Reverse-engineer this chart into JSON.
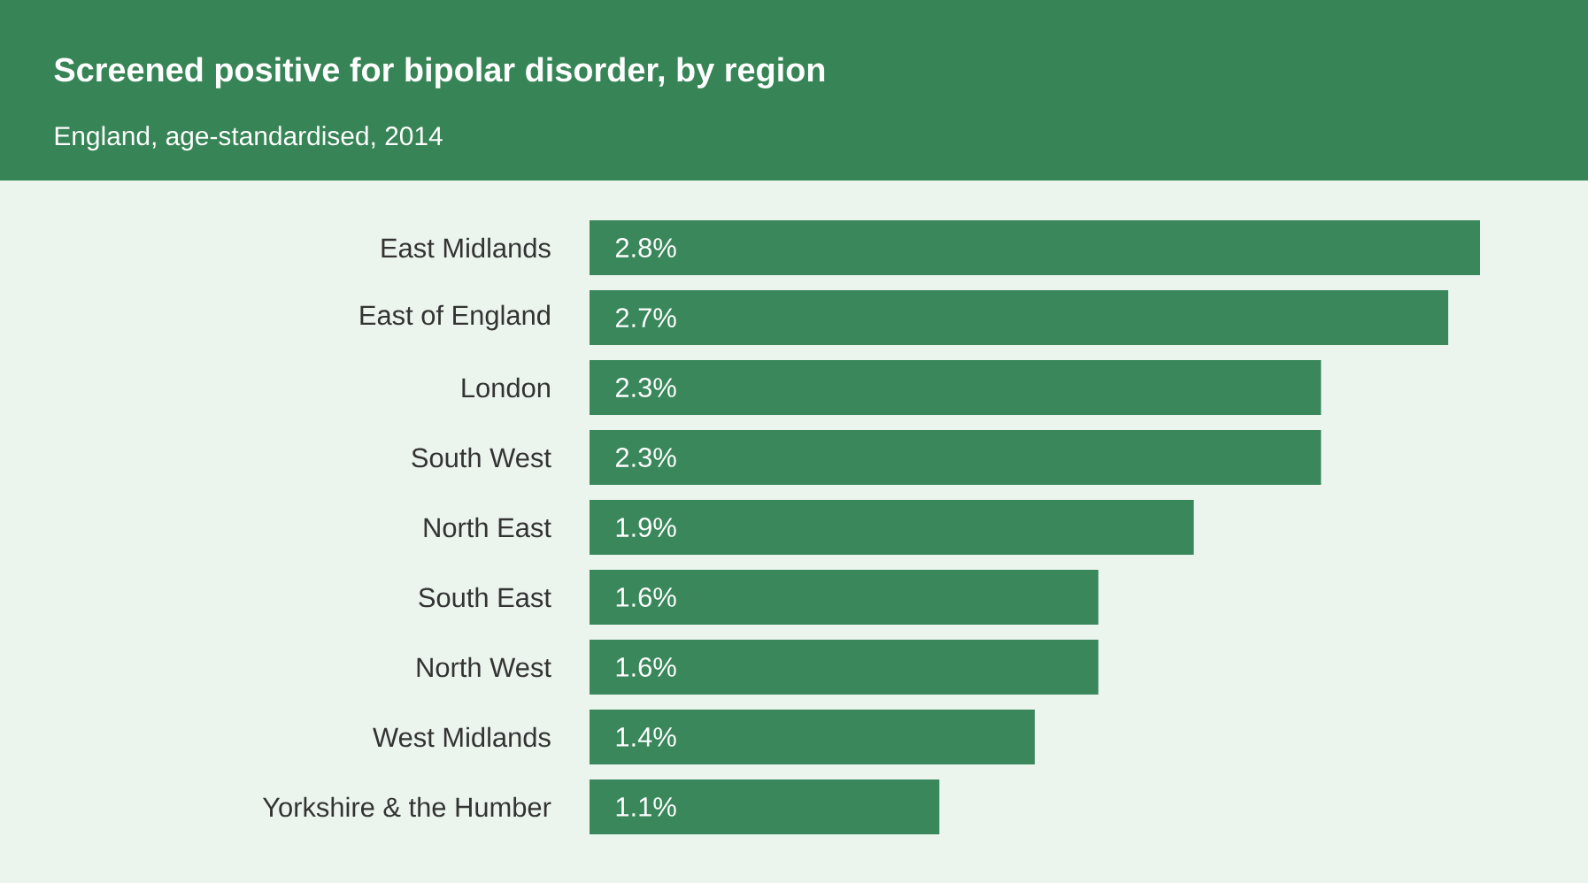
{
  "chart_data": {
    "type": "bar",
    "orientation": "horizontal",
    "title": "Screened positive for bipolar disorder, by region",
    "subtitle": "England, age-standardised, 2014",
    "categories": [
      "East Midlands",
      "East of England",
      "London",
      "South West",
      "North East",
      "South East",
      "North West",
      "West Midlands",
      "Yorkshire & the Humber"
    ],
    "values": [
      2.8,
      2.7,
      2.3,
      2.3,
      1.9,
      1.6,
      1.6,
      1.4,
      1.1
    ],
    "value_labels": [
      "2.8%",
      "2.7%",
      "2.3%",
      "2.3%",
      "1.9%",
      "1.6%",
      "1.6%",
      "1.4%",
      "1.1%"
    ],
    "color": "#3a875c"
  }
}
